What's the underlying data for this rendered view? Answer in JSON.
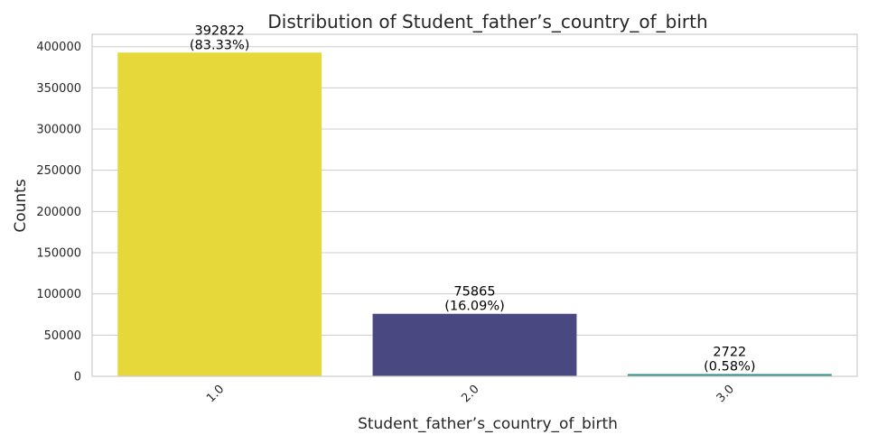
{
  "chart_data": {
    "type": "bar",
    "title": "Distribution of Student_father’s_country_of_birth",
    "xlabel": "Student_father’s_country_of_birth",
    "ylabel": "Counts",
    "categories": [
      "1.0",
      "2.0",
      "3.0"
    ],
    "values": [
      392822,
      75865,
      2722
    ],
    "percent_labels": [
      "(83.33%)",
      "(16.09%)",
      "(0.58%)"
    ],
    "colors": [
      "#e6d83a",
      "#4a4880",
      "#2c8c8a"
    ],
    "ylim": [
      0,
      415000
    ],
    "yticks": [
      0,
      50000,
      100000,
      150000,
      200000,
      250000,
      300000,
      350000,
      400000
    ],
    "grid": true,
    "legend": "none"
  }
}
